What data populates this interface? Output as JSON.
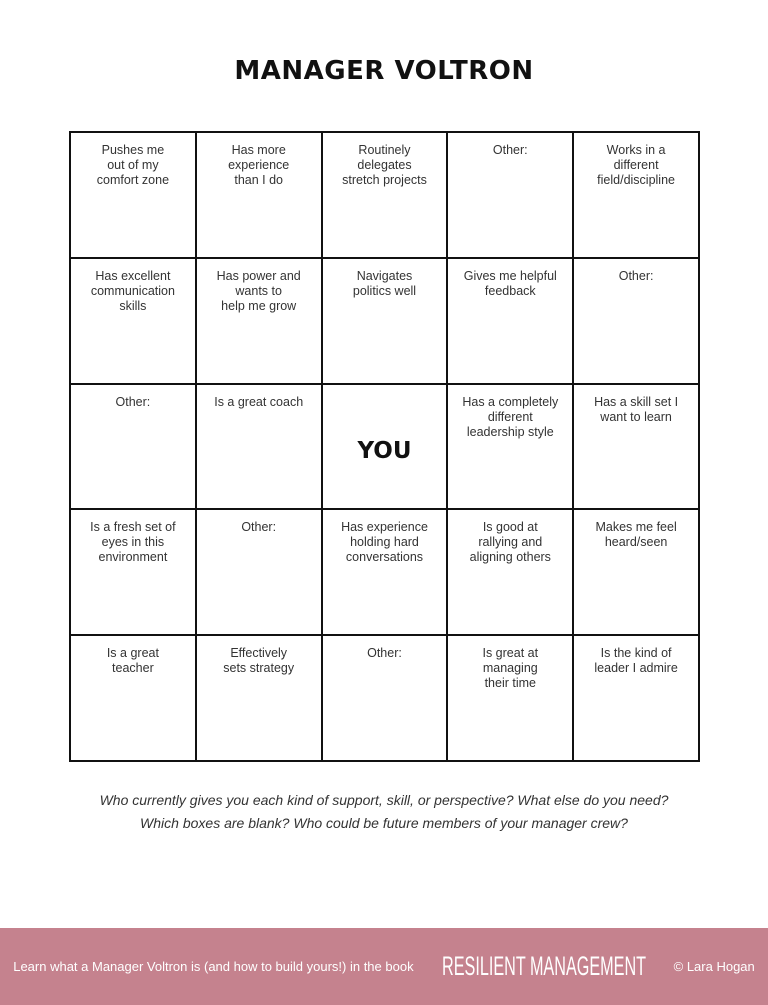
{
  "title": "MANAGER VOLTRON",
  "grid": [
    [
      "Pushes me",
      "out of my",
      "comfort zone"
    ],
    [
      "Has more",
      "experience",
      "than I do"
    ],
    [
      "Routinely",
      "delegates",
      "stretch projects"
    ],
    [
      "Other:"
    ],
    [
      "Works in a",
      "different",
      "field/discipline"
    ],
    [
      "Has excellent",
      "communication",
      "skills"
    ],
    [
      "Has power and",
      "wants to",
      "help me grow"
    ],
    [
      "Navigates",
      "politics well"
    ],
    [
      "Gives me helpful",
      "feedback"
    ],
    [
      "Other:"
    ],
    [
      "Other:"
    ],
    [
      "Is a great coach"
    ],
    [
      "YOU"
    ],
    [
      "Has a completely",
      "different",
      "leadership style"
    ],
    [
      "Has a skill set I",
      "want to learn"
    ],
    [
      "Is a fresh set of",
      "eyes in this",
      "environment"
    ],
    [
      "Other:"
    ],
    [
      "Has experience",
      "holding hard",
      "conversations"
    ],
    [
      "Is good at",
      "rallying and",
      "aligning others"
    ],
    [
      "Makes me feel",
      "heard/seen"
    ],
    [
      "Is a great",
      "teacher"
    ],
    [
      "Effectively",
      "sets strategy"
    ],
    [
      "Other:"
    ],
    [
      "Is great at",
      "managing",
      "their time"
    ],
    [
      "Is the kind of",
      "leader I admire"
    ]
  ],
  "questions": [
    "Who currently gives you each kind of support, skill, or perspective? What else do you need?",
    "Which boxes are blank? Who could be future members of your manager crew?"
  ],
  "footer": {
    "text": "Learn what a Manager Voltron is (and how to build yours!) in the book",
    "book": "RESILIENT MANAGEMENT",
    "copyright": "© Lara Hogan",
    "color": "#c5828e"
  }
}
